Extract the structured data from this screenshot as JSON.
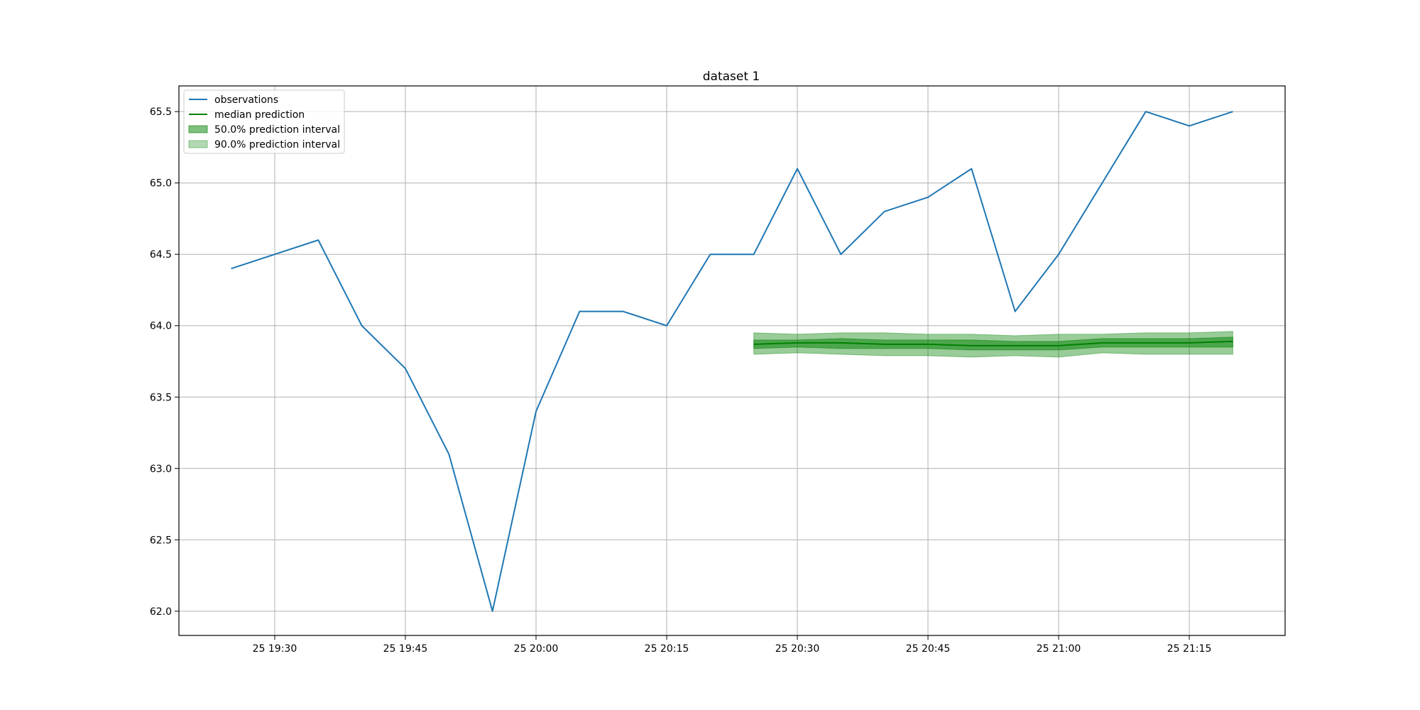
{
  "chart_data": {
    "type": "line",
    "title": "dataset 1",
    "xlabel": "",
    "ylabel": "",
    "x_ticks": [
      "25 19:30",
      "25 19:45",
      "25 20:00",
      "25 20:15",
      "25 20:30",
      "25 20:45",
      "25 21:00",
      "25 21:15"
    ],
    "x_tick_times": [
      "19:30",
      "19:45",
      "20:00",
      "20:15",
      "20:30",
      "20:45",
      "21:00",
      "21:15"
    ],
    "xlim": [
      "19:19",
      "21:26"
    ],
    "y_ticks": [
      "62.0",
      "62.5",
      "63.0",
      "63.5",
      "64.0",
      "64.5",
      "65.0",
      "65.5"
    ],
    "ylim": [
      61.83,
      65.68
    ],
    "grid": true,
    "legend_position": "top-left",
    "legend": [
      {
        "label": "observations",
        "kind": "line",
        "color": "#1f77b4"
      },
      {
        "label": "median prediction",
        "kind": "line",
        "color": "#008000"
      },
      {
        "label": "50.0% prediction interval",
        "kind": "patch",
        "color": "#008000",
        "alpha": 0.5
      },
      {
        "label": "90.0% prediction interval",
        "kind": "patch",
        "color": "#008000",
        "alpha": 0.3
      }
    ],
    "series": [
      {
        "name": "observations",
        "color": "#1f77b4",
        "x": [
          "19:25",
          "19:30",
          "19:35",
          "19:40",
          "19:45",
          "19:50",
          "19:55",
          "20:00",
          "20:05",
          "20:10",
          "20:15",
          "20:20",
          "20:25",
          "20:30",
          "20:35",
          "20:40",
          "20:45",
          "20:50",
          "20:55",
          "21:00",
          "21:05",
          "21:10",
          "21:15",
          "21:20"
        ],
        "values": [
          64.4,
          64.5,
          64.6,
          64.0,
          63.7,
          63.1,
          62.0,
          63.4,
          64.1,
          64.1,
          64.0,
          64.5,
          64.5,
          65.1,
          64.5,
          64.8,
          64.9,
          65.1,
          64.1,
          64.5,
          65.0,
          65.5,
          65.4,
          65.5
        ]
      },
      {
        "name": "median prediction",
        "color": "#008000",
        "x": [
          "20:25",
          "20:30",
          "20:35",
          "20:40",
          "20:45",
          "20:50",
          "20:55",
          "21:00",
          "21:05",
          "21:10",
          "21:15",
          "21:20"
        ],
        "values": [
          63.87,
          63.88,
          63.88,
          63.87,
          63.87,
          63.86,
          63.86,
          63.86,
          63.88,
          63.88,
          63.88,
          63.89
        ]
      }
    ],
    "intervals": [
      {
        "name": "90.0% prediction interval",
        "color": "#008000",
        "alpha": 0.4,
        "x": [
          "20:25",
          "20:30",
          "20:35",
          "20:40",
          "20:45",
          "20:50",
          "20:55",
          "21:00",
          "21:05",
          "21:10",
          "21:15",
          "21:20"
        ],
        "lower": [
          63.8,
          63.81,
          63.8,
          63.79,
          63.79,
          63.78,
          63.79,
          63.78,
          63.81,
          63.8,
          63.8,
          63.8
        ],
        "upper": [
          63.95,
          63.94,
          63.95,
          63.95,
          63.94,
          63.94,
          63.93,
          63.94,
          63.94,
          63.95,
          63.95,
          63.96
        ]
      },
      {
        "name": "50.0% prediction interval",
        "color": "#008000",
        "alpha": 0.5,
        "x": [
          "20:25",
          "20:30",
          "20:35",
          "20:40",
          "20:45",
          "20:50",
          "20:55",
          "21:00",
          "21:05",
          "21:10",
          "21:15",
          "21:20"
        ],
        "lower": [
          63.84,
          63.85,
          63.84,
          63.84,
          63.84,
          63.83,
          63.83,
          63.83,
          63.85,
          63.85,
          63.85,
          63.85
        ],
        "upper": [
          63.9,
          63.9,
          63.91,
          63.9,
          63.9,
          63.9,
          63.89,
          63.89,
          63.91,
          63.91,
          63.91,
          63.92
        ]
      }
    ]
  }
}
